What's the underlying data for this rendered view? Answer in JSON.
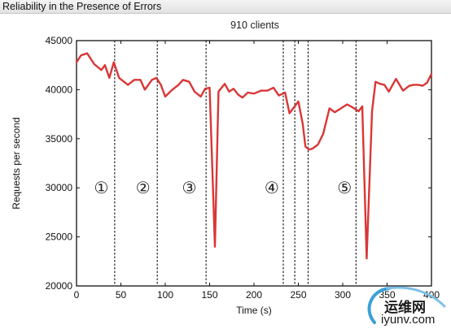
{
  "window": {
    "title": "Reliability in the Presence of Errors"
  },
  "chart_data": {
    "type": "line",
    "title": "910 clients",
    "xlabel": "Time (s)",
    "ylabel": "Requests per second",
    "xlim": [
      0,
      400
    ],
    "ylim": [
      20000,
      45000
    ],
    "xticks": [
      0,
      50,
      100,
      150,
      200,
      250,
      300,
      350,
      400
    ],
    "yticks": [
      20000,
      25000,
      30000,
      35000,
      40000,
      45000
    ],
    "series": [
      {
        "color": "#d93636",
        "x": [
          0,
          5,
          12,
          20,
          28,
          32,
          37,
          42,
          48,
          58,
          65,
          72,
          77,
          85,
          90,
          95,
          100,
          108,
          115,
          120,
          127,
          133,
          140,
          145,
          150,
          156,
          160,
          167,
          172,
          177,
          182,
          187,
          193,
          200,
          208,
          215,
          222,
          228,
          235,
          240,
          245,
          250,
          255,
          258,
          262,
          266,
          272,
          278,
          285,
          291,
          298,
          305,
          311,
          318,
          322,
          327,
          333,
          337,
          342,
          347,
          352,
          360,
          368,
          375,
          380,
          385,
          390,
          395,
          400
        ],
        "y": [
          42800,
          43500,
          43700,
          42600,
          42000,
          42500,
          41200,
          42800,
          41200,
          40500,
          41000,
          41000,
          40000,
          41000,
          41200,
          40500,
          39300,
          40000,
          40500,
          41000,
          40800,
          39800,
          39300,
          40100,
          40200,
          24000,
          39800,
          40600,
          39800,
          40100,
          39500,
          39200,
          39700,
          39600,
          39900,
          39900,
          40200,
          39400,
          39700,
          37600,
          38200,
          38800,
          36500,
          34200,
          33900,
          34000,
          34400,
          35500,
          38100,
          37700,
          38100,
          38500,
          38200,
          37800,
          38300,
          22800,
          37800,
          40800,
          40600,
          40500,
          39800,
          41100,
          39900,
          40400,
          40500,
          40500,
          40400,
          40700,
          41600
        ]
      }
    ],
    "event_lines": [
      43,
      91,
      146,
      233,
      246,
      261,
      315
    ],
    "phases": [
      {
        "label": "①",
        "x": 28
      },
      {
        "label": "②",
        "x": 75
      },
      {
        "label": "③",
        "x": 127
      },
      {
        "label": "④",
        "x": 220
      },
      {
        "label": "⑤",
        "x": 302
      }
    ],
    "grid": false,
    "legend": "none"
  },
  "watermark": {
    "text": "运维网",
    "domain": "iyunv.com"
  }
}
